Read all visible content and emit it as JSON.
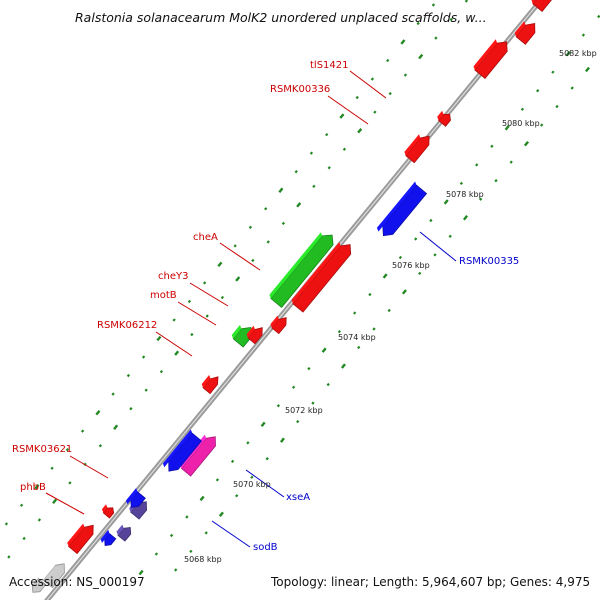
{
  "header": {
    "title": "Ralstonia solanacearum MolK2 unordered unplaced scaffolds, w..."
  },
  "footer": {
    "accession": "Accession: NS_000197",
    "summary": "Topology: linear; Length: 5,964,607 bp; Genes: 4,975"
  },
  "colors": {
    "forward_gene": "#ee1111",
    "reverse_gene": "#1111ee",
    "cds_green": "#22bb22",
    "pink_gene": "#ee22aa",
    "purple_gene": "#554499",
    "grey_gene": "#cccccc",
    "tick_green": "#228822",
    "label_red": "#cc0000",
    "label_blue": "#0000cc"
  },
  "scale_labels": [
    "5068 kbp",
    "5070 kbp",
    "5072 kbp",
    "5074 kbp",
    "5076 kbp",
    "5078 kbp",
    "5080 kbp",
    "5082 kbp"
  ],
  "gene_labels": [
    {
      "text": "tlS1421",
      "color": "red"
    },
    {
      "text": "RSMK00336",
      "color": "red"
    },
    {
      "text": "cheA",
      "color": "red"
    },
    {
      "text": "cheY3",
      "color": "red"
    },
    {
      "text": "motB",
      "color": "red"
    },
    {
      "text": "RSMK06212",
      "color": "red"
    },
    {
      "text": "RSMK03621",
      "color": "red"
    },
    {
      "text": "phbB",
      "color": "red"
    },
    {
      "text": "RSMK00335",
      "color": "blue"
    },
    {
      "text": "xseA",
      "color": "blue"
    },
    {
      "text": "sodB",
      "color": "blue"
    }
  ]
}
